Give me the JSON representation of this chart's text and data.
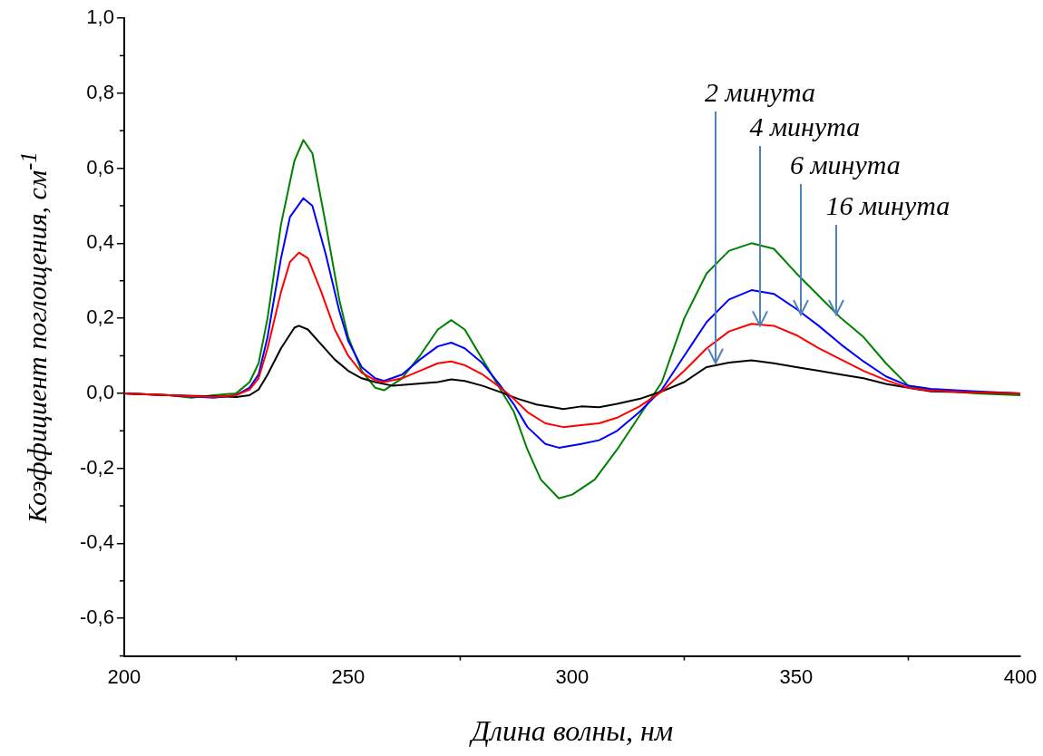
{
  "chart_data": {
    "type": "line",
    "xlabel": "Длина волны, нм",
    "ylabel": "Коэффициент поглощения, см$^{-1}$",
    "xlim": [
      200,
      400
    ],
    "xticks": [
      200,
      250,
      300,
      350,
      400
    ],
    "ylim": [
      -0.7,
      1.0
    ],
    "yticks": [
      {
        "value": -0.6,
        "label": "-0,6"
      },
      {
        "value": -0.4,
        "label": "-0,4"
      },
      {
        "value": -0.2,
        "label": "-0,2"
      },
      {
        "value": 0,
        "label": "0,0"
      },
      {
        "value": 0.2,
        "label": "0,2"
      },
      {
        "value": 0.4,
        "label": "0,4"
      },
      {
        "value": 0.6,
        "label": "0,6"
      },
      {
        "value": 0.8,
        "label": "0,8"
      },
      {
        "value": 1.0,
        "label": "1,0"
      }
    ],
    "grid": false,
    "legend": false,
    "marker": "none",
    "line_style": "solid",
    "annotations": [
      {
        "text": "2 минута",
        "x": 332,
        "y": 0.08
      },
      {
        "text": "4 минута",
        "x": 342,
        "y": 0.18
      },
      {
        "text": "6 минута",
        "x": 351,
        "y": 0.21
      },
      {
        "text": "16 минута",
        "x": 359,
        "y": 0.21
      }
    ],
    "series": [
      {
        "color": "#000000",
        "x": [
          200,
          210,
          220,
          225,
          228,
          230,
          232,
          235,
          238,
          239,
          241,
          244,
          247,
          250,
          253,
          256,
          260,
          265,
          270,
          273,
          276,
          280,
          284,
          288,
          292,
          296,
          298,
          302,
          306,
          310,
          315,
          320,
          325,
          330,
          335,
          340,
          345,
          350,
          355,
          360,
          365,
          370,
          375,
          380,
          390,
          400
        ],
        "values": [
          0,
          -0.005,
          -0.008,
          -0.01,
          -0.005,
          0.01,
          0.05,
          0.12,
          0.175,
          0.18,
          0.17,
          0.13,
          0.09,
          0.06,
          0.04,
          0.03,
          0.02,
          0.025,
          0.03,
          0.037,
          0.033,
          0.02,
          0.003,
          -0.015,
          -0.03,
          -0.038,
          -0.042,
          -0.035,
          -0.037,
          -0.028,
          -0.015,
          0.005,
          0.03,
          0.07,
          0.082,
          0.088,
          0.08,
          0.07,
          0.06,
          0.05,
          0.04,
          0.025,
          0.015,
          0.005,
          0.002,
          0
        ]
      },
      {
        "color": "#ff0000",
        "x": [
          200,
          210,
          220,
          225,
          228,
          230,
          232,
          235,
          237,
          239,
          241,
          244,
          247,
          250,
          253,
          256,
          258,
          262,
          266,
          270,
          273,
          276,
          280,
          284,
          287,
          290,
          294,
          298,
          302,
          306,
          310,
          315,
          320,
          325,
          330,
          335,
          340,
          345,
          350,
          355,
          360,
          365,
          370,
          375,
          380,
          390,
          400
        ],
        "values": [
          0,
          -0.005,
          -0.01,
          -0.005,
          0.01,
          0.04,
          0.12,
          0.27,
          0.35,
          0.375,
          0.36,
          0.27,
          0.17,
          0.1,
          0.055,
          0.035,
          0.03,
          0.04,
          0.06,
          0.08,
          0.085,
          0.075,
          0.05,
          0.015,
          -0.015,
          -0.05,
          -0.08,
          -0.09,
          -0.085,
          -0.08,
          -0.065,
          -0.035,
          0.005,
          0.06,
          0.12,
          0.165,
          0.185,
          0.18,
          0.155,
          0.12,
          0.09,
          0.06,
          0.035,
          0.015,
          0.007,
          0.002,
          0
        ]
      },
      {
        "color": "#0000ff",
        "x": [
          200,
          210,
          220,
          225,
          228,
          230,
          232,
          235,
          237,
          240,
          242,
          245,
          248,
          250,
          253,
          256,
          258,
          262,
          266,
          270,
          273,
          276,
          280,
          284,
          287,
          290,
          294,
          297,
          302,
          306,
          310,
          315,
          320,
          325,
          330,
          335,
          340,
          345,
          350,
          355,
          360,
          365,
          370,
          375,
          380,
          390,
          400
        ],
        "values": [
          0,
          -0.005,
          -0.012,
          -0.005,
          0.015,
          0.05,
          0.15,
          0.36,
          0.47,
          0.52,
          0.5,
          0.37,
          0.22,
          0.14,
          0.07,
          0.04,
          0.033,
          0.05,
          0.09,
          0.125,
          0.135,
          0.12,
          0.08,
          0.02,
          -0.03,
          -0.09,
          -0.135,
          -0.145,
          -0.135,
          -0.125,
          -0.1,
          -0.05,
          0.01,
          0.1,
          0.19,
          0.25,
          0.275,
          0.265,
          0.225,
          0.18,
          0.13,
          0.085,
          0.045,
          0.02,
          0.012,
          0.005,
          0
        ]
      },
      {
        "color": "#008000",
        "x": [
          200,
          210,
          215,
          220,
          225,
          228,
          230,
          232,
          235,
          238,
          240,
          242,
          245,
          248,
          250,
          253,
          256,
          258,
          262,
          266,
          270,
          273,
          276,
          280,
          284,
          287,
          290,
          293,
          297,
          300,
          305,
          310,
          315,
          320,
          325,
          330,
          335,
          340,
          345,
          350,
          355,
          360,
          365,
          370,
          375,
          380,
          390,
          400
        ],
        "values": [
          0,
          -0.005,
          -0.012,
          -0.005,
          0,
          0.03,
          0.08,
          0.2,
          0.45,
          0.62,
          0.675,
          0.64,
          0.45,
          0.25,
          0.15,
          0.06,
          0.015,
          0.008,
          0.04,
          0.1,
          0.17,
          0.195,
          0.17,
          0.09,
          0.01,
          -0.05,
          -0.15,
          -0.23,
          -0.28,
          -0.27,
          -0.23,
          -0.15,
          -0.06,
          0.03,
          0.2,
          0.32,
          0.38,
          0.4,
          0.385,
          0.32,
          0.26,
          0.2,
          0.15,
          0.08,
          0.02,
          0.01,
          0,
          -0.005
        ]
      }
    ]
  }
}
